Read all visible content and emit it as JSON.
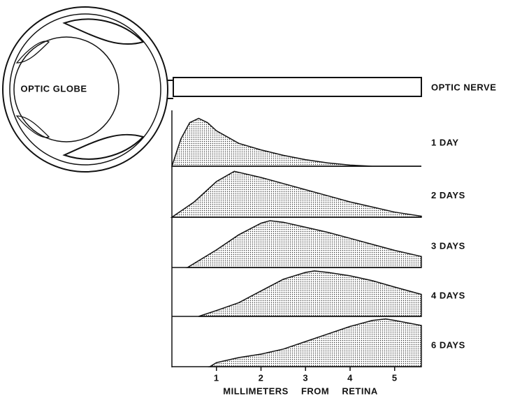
{
  "chart_data": {
    "type": "area",
    "labels": {
      "globe": "OPTIC GLOBE",
      "nerve": "OPTIC NERVE"
    },
    "xlabel": "MILLIMETERS FROM RETINA",
    "xlim": [
      0,
      5.6
    ],
    "xticks": [
      1,
      2,
      3,
      4,
      5
    ],
    "ylim": [
      0,
      1
    ],
    "series": [
      {
        "name": "1 DAY",
        "color": "#111",
        "x": [
          0,
          0.2,
          0.4,
          0.6,
          0.8,
          1.0,
          1.5,
          2,
          2.5,
          3,
          3.5,
          4,
          4.5,
          5.6
        ],
        "values": [
          0,
          0.5,
          0.8,
          0.88,
          0.8,
          0.65,
          0.42,
          0.3,
          0.2,
          0.12,
          0.06,
          0.02,
          0,
          0
        ]
      },
      {
        "name": "2 DAYS",
        "color": "#111",
        "x": [
          0,
          0.5,
          1,
          1.4,
          2,
          2.5,
          3,
          3.5,
          4,
          4.5,
          5,
          5.6
        ],
        "values": [
          0,
          0.3,
          0.7,
          0.9,
          0.78,
          0.66,
          0.54,
          0.42,
          0.3,
          0.2,
          0.1,
          0.02
        ]
      },
      {
        "name": "3 DAYS",
        "color": "#111",
        "x": [
          0.35,
          1,
          1.5,
          2,
          2.2,
          2.5,
          3,
          3.5,
          4,
          4.5,
          5,
          5.6
        ],
        "values": [
          0,
          0.35,
          0.65,
          0.88,
          0.93,
          0.9,
          0.8,
          0.7,
          0.58,
          0.46,
          0.34,
          0.22
        ]
      },
      {
        "name": "4 DAYS",
        "color": "#111",
        "x": [
          0.6,
          1,
          1.5,
          2,
          2.5,
          3,
          3.2,
          3.5,
          4,
          4.5,
          5,
          5.6
        ],
        "values": [
          0,
          0.12,
          0.28,
          0.52,
          0.76,
          0.9,
          0.93,
          0.9,
          0.83,
          0.73,
          0.6,
          0.45
        ]
      },
      {
        "name": "6 DAYS",
        "color": "#111",
        "x": [
          0.85,
          1,
          1.5,
          2,
          2.5,
          3,
          3.5,
          4,
          4.5,
          4.8,
          5,
          5.6
        ],
        "values": [
          0,
          0.08,
          0.18,
          0.25,
          0.35,
          0.5,
          0.65,
          0.8,
          0.92,
          0.95,
          0.92,
          0.82
        ]
      }
    ]
  }
}
